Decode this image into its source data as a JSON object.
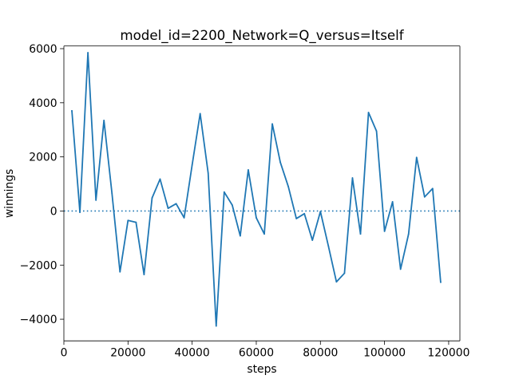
{
  "chart_data": {
    "type": "line",
    "title": "model_id=2200_Network=Q_versus=Itself",
    "xlabel": "steps",
    "ylabel": "winnings",
    "xlim": [
      0,
      123500
    ],
    "ylim": [
      -4800,
      6100
    ],
    "xticks": [
      0,
      20000,
      40000,
      60000,
      80000,
      100000,
      120000
    ],
    "yticks": [
      -4000,
      -2000,
      0,
      2000,
      4000,
      6000
    ],
    "grid": false,
    "reference_line": {
      "y": 0,
      "style": "dotted"
    },
    "series": [
      {
        "name": "winnings",
        "color": "#1f77b4",
        "x": [
          2500,
          5000,
          7500,
          10000,
          12500,
          15000,
          17500,
          20000,
          22500,
          25000,
          27500,
          30000,
          32500,
          35000,
          37500,
          40000,
          42500,
          45000,
          47500,
          50000,
          52500,
          55000,
          57500,
          60000,
          62500,
          65000,
          67500,
          70000,
          72500,
          75000,
          77500,
          80000,
          82500,
          85000,
          87500,
          90000,
          92500,
          95000,
          97500,
          100000,
          102500,
          105000,
          107500,
          110000,
          112500,
          115000,
          117500
        ],
        "y": [
          3700,
          -50,
          5850,
          400,
          3350,
          650,
          -2250,
          -350,
          -420,
          -2350,
          480,
          1180,
          100,
          270,
          -250,
          1700,
          3600,
          1400,
          -4250,
          700,
          220,
          -920,
          1520,
          -250,
          -850,
          3220,
          1800,
          900,
          -280,
          -100,
          -1080,
          -20,
          -1300,
          -2620,
          -2300,
          1220,
          -850,
          3640,
          2950,
          -750,
          340,
          -2150,
          -850,
          1980,
          520,
          830,
          -2630
        ]
      }
    ]
  }
}
